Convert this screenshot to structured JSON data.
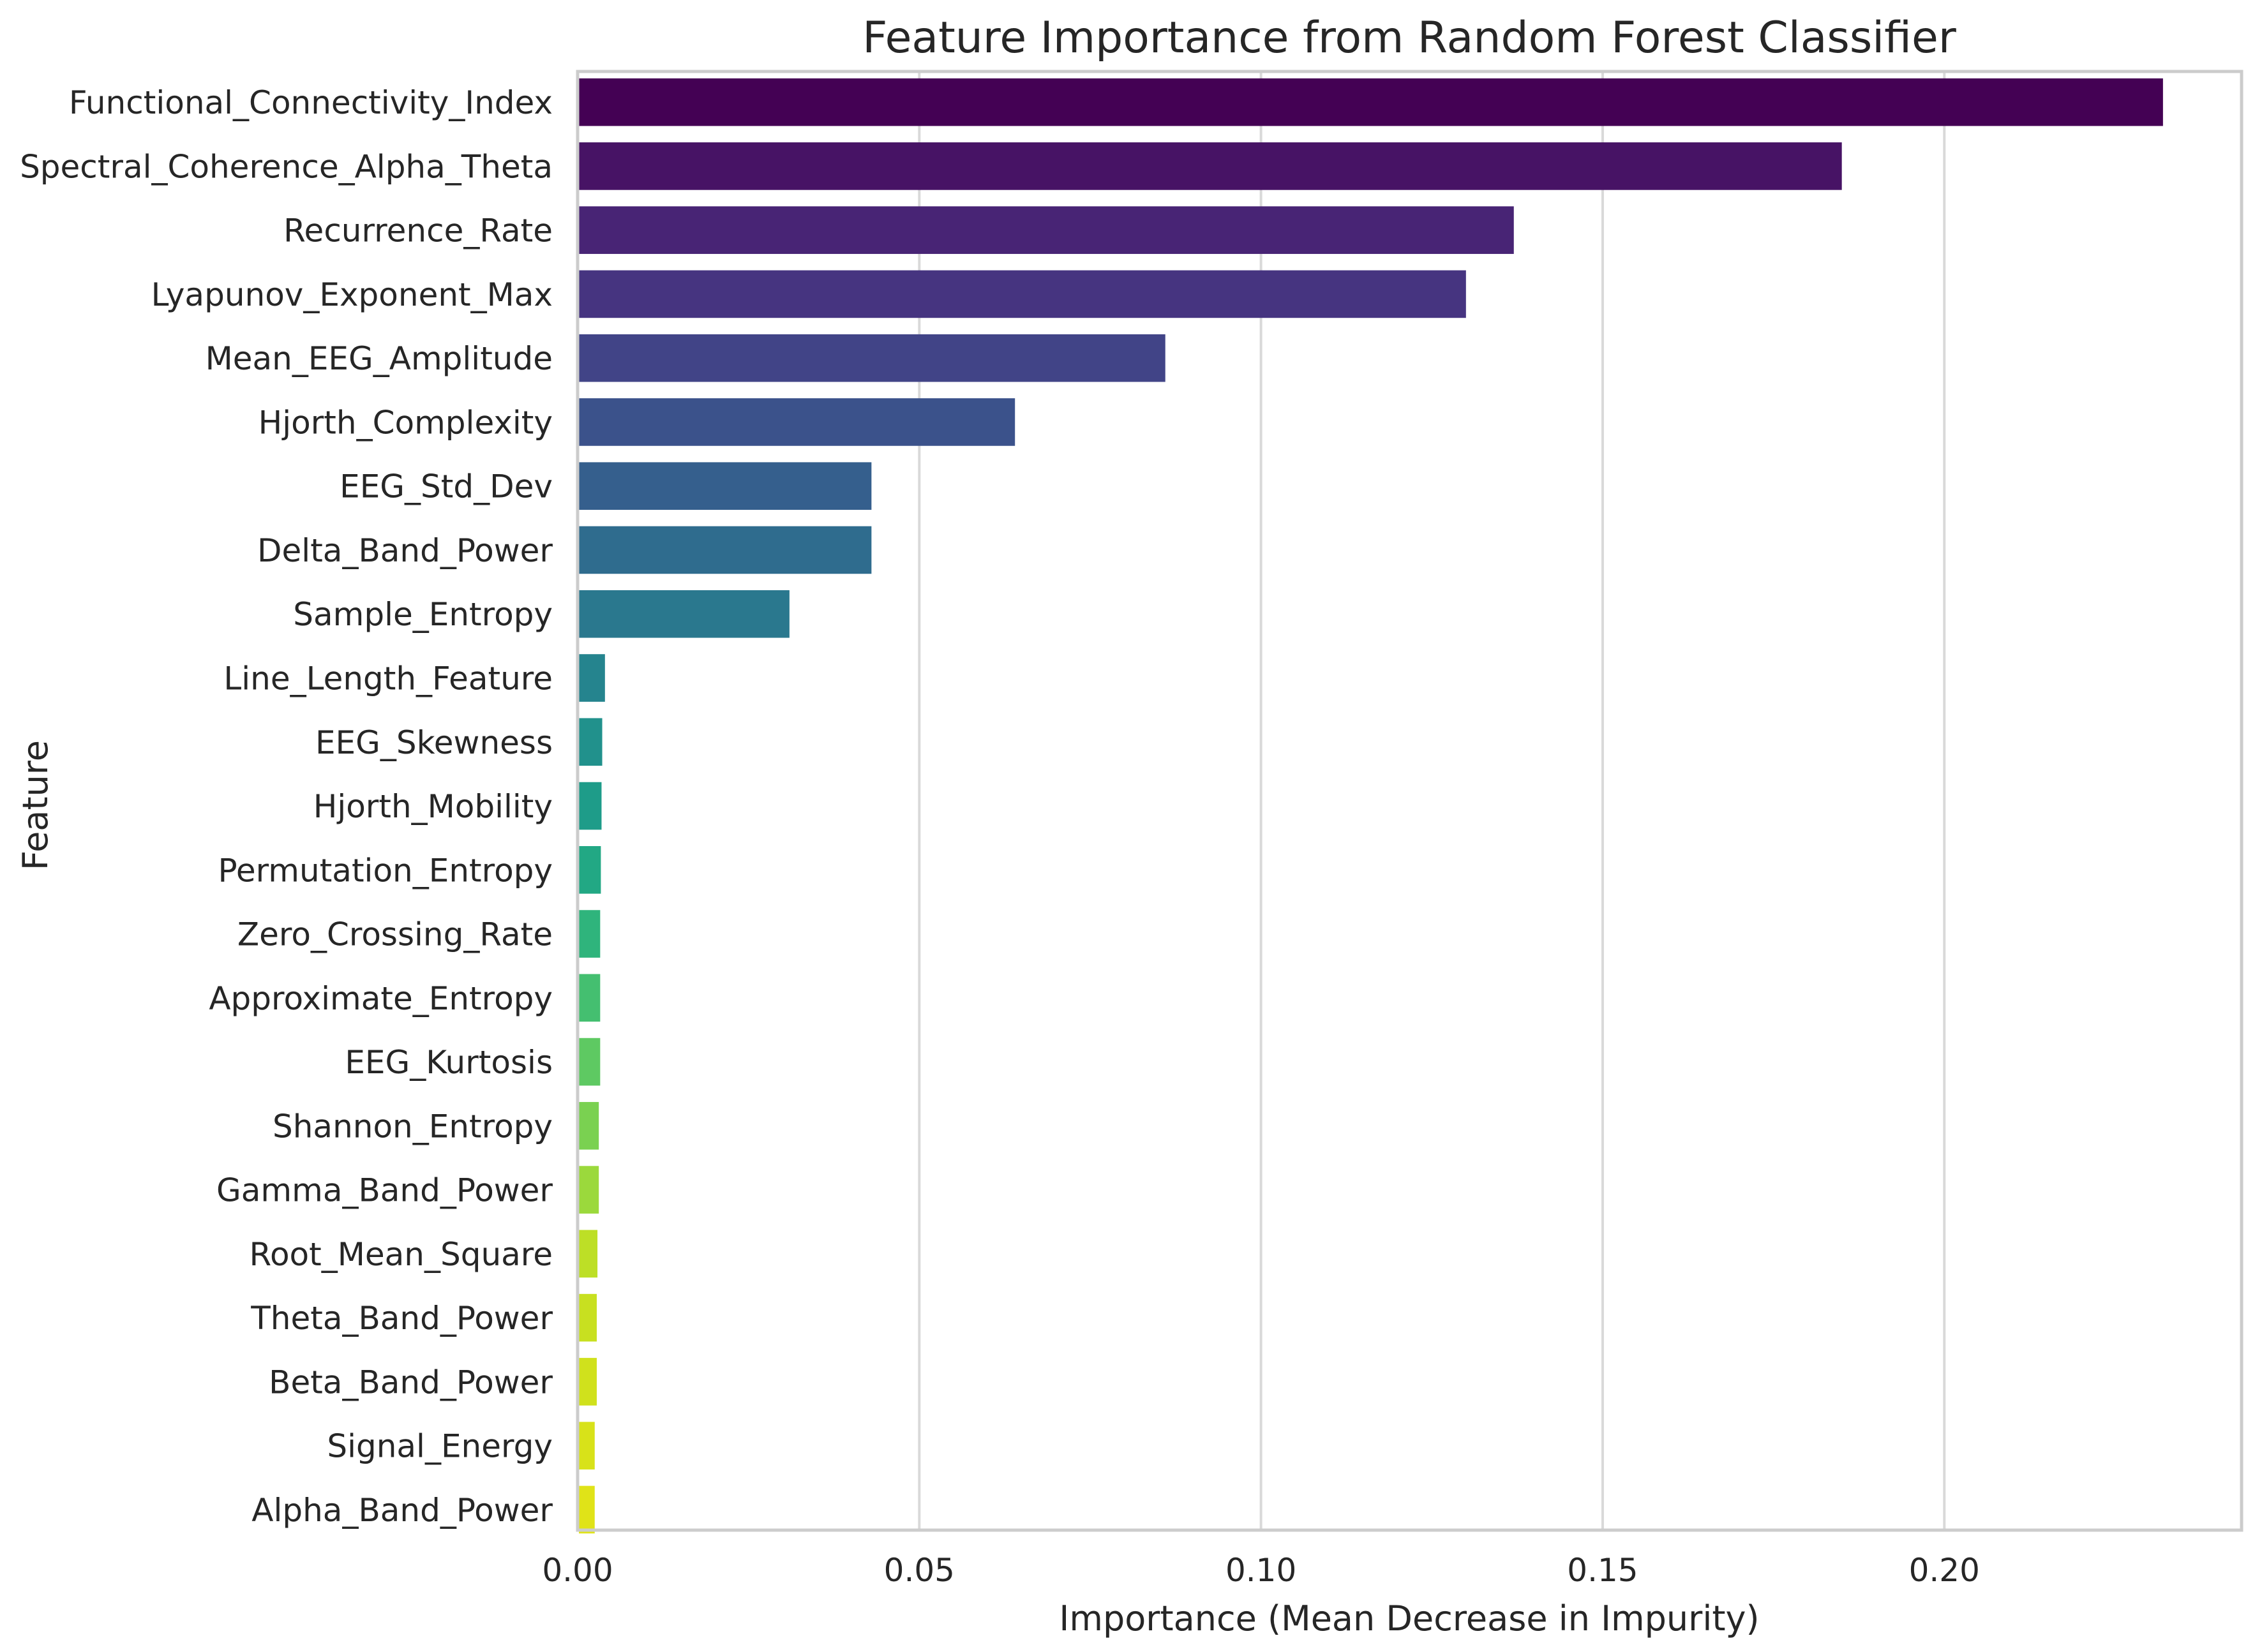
{
  "chart_data": {
    "type": "bar",
    "orientation": "horizontal",
    "title": "Feature Importance from Random Forest Classifier",
    "xlabel": "Importance (Mean Decrease in Impurity)",
    "ylabel": "Feature",
    "xlim": [
      0,
      0.2435
    ],
    "xticks": [
      0.0,
      0.05,
      0.1,
      0.15,
      0.2
    ],
    "xtick_labels": [
      "0.00",
      "0.05",
      "0.10",
      "0.15",
      "0.20"
    ],
    "grid": "vertical",
    "palette": "viridis",
    "categories": [
      "Functional_Connectivity_Index",
      "Spectral_Coherence_Alpha_Theta",
      "Recurrence_Rate",
      "Lyapunov_Exponent_Max",
      "Mean_EEG_Amplitude",
      "Hjorth_Complexity",
      "EEG_Std_Dev",
      "Delta_Band_Power",
      "Sample_Entropy",
      "Line_Length_Feature",
      "EEG_Skewness",
      "Hjorth_Mobility",
      "Permutation_Entropy",
      "Zero_Crossing_Rate",
      "Approximate_Entropy",
      "EEG_Kurtosis",
      "Shannon_Entropy",
      "Gamma_Band_Power",
      "Root_Mean_Square",
      "Theta_Band_Power",
      "Beta_Band_Power",
      "Signal_Energy",
      "Alpha_Band_Power"
    ],
    "values": [
      0.232,
      0.185,
      0.137,
      0.13,
      0.086,
      0.064,
      0.043,
      0.043,
      0.031,
      0.004,
      0.0036,
      0.0035,
      0.0034,
      0.0033,
      0.0033,
      0.0033,
      0.0031,
      0.0031,
      0.0029,
      0.0028,
      0.0028,
      0.0025,
      0.0025
    ],
    "colors": [
      "#440154",
      "#471365",
      "#482475",
      "#463480",
      "#414487",
      "#3b528b",
      "#355f8d",
      "#2f6c8e",
      "#2a788e",
      "#25848e",
      "#21918c",
      "#1e9c89",
      "#22a884",
      "#2fb47c",
      "#44bf70",
      "#5ec962",
      "#7ad151",
      "#9bd93c",
      "#bddf26",
      "#c8e020",
      "#d0e11c",
      "#d8e219",
      "#e0e318"
    ]
  }
}
